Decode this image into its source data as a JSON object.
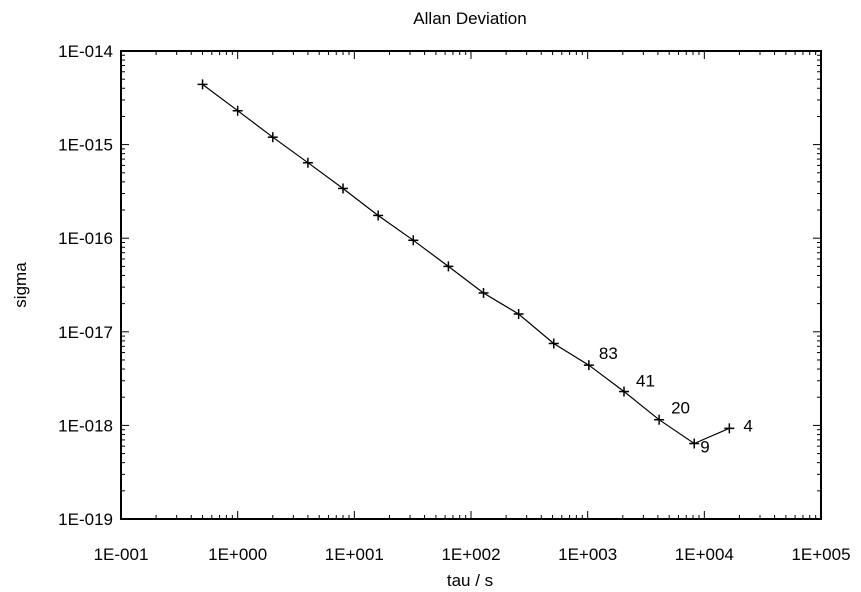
{
  "chart_data": {
    "type": "line",
    "title": "Allan Deviation",
    "xlabel": "tau / s",
    "ylabel": "sigma",
    "x_scale": "log",
    "y_scale": "log",
    "xlim": [
      0.1,
      100000
    ],
    "ylim": [
      1e-19,
      1e-14
    ],
    "grid": false,
    "x_tick_labels": [
      "1E-001",
      "1E+000",
      "1E+001",
      "1E+002",
      "1E+003",
      "1E+004",
      "1E+005"
    ],
    "y_tick_labels": [
      "1E-019",
      "1E-018",
      "1E-017",
      "1E-016",
      "1E-015",
      "1E-014"
    ],
    "series": [
      {
        "color": "#000000",
        "marker": "plus",
        "points": [
          {
            "x": 0.5,
            "y": 4.4e-15
          },
          {
            "x": 1,
            "y": 2.3e-15
          },
          {
            "x": 2,
            "y": 1.2e-15
          },
          {
            "x": 4,
            "y": 6.4e-16
          },
          {
            "x": 8,
            "y": 3.4e-16
          },
          {
            "x": 16,
            "y": 1.75e-16
          },
          {
            "x": 32,
            "y": 9.5e-17
          },
          {
            "x": 64,
            "y": 5e-17
          },
          {
            "x": 128,
            "y": 2.6e-17
          },
          {
            "x": 256,
            "y": 1.55e-17
          },
          {
            "x": 512,
            "y": 7.5e-18
          },
          {
            "x": 1024,
            "y": 4.4e-18
          },
          {
            "x": 2048,
            "y": 2.3e-18
          },
          {
            "x": 4096,
            "y": 1.15e-18
          },
          {
            "x": 8192,
            "y": 6.4e-19
          },
          {
            "x": 16384,
            "y": 9.3e-19
          }
        ]
      }
    ],
    "point_labels": [
      {
        "point_index": 11,
        "text": "83"
      },
      {
        "point_index": 12,
        "text": "41"
      },
      {
        "point_index": 13,
        "text": "20"
      },
      {
        "point_index": 14,
        "text": "9"
      },
      {
        "point_index": 15,
        "text": "4"
      }
    ]
  }
}
